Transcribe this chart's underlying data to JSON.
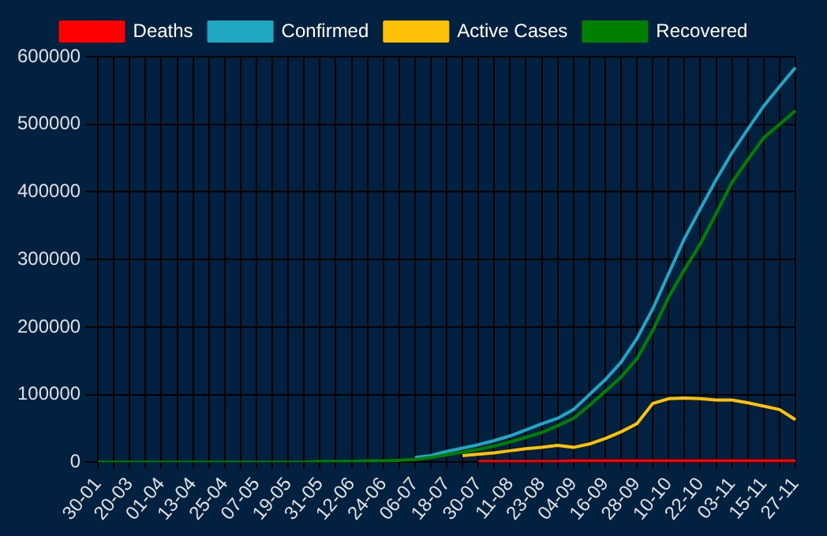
{
  "chart_data": {
    "type": "line",
    "categories": [
      "30-01",
      null,
      "20-03",
      null,
      "01-04",
      null,
      "13-04",
      null,
      "25-04",
      null,
      "07-05",
      null,
      "19-05",
      null,
      "31-05",
      null,
      "12-06",
      null,
      "24-06",
      null,
      "06-07",
      null,
      "18-07",
      null,
      "30-07",
      null,
      "11-08",
      null,
      "23-08",
      null,
      "04-09",
      null,
      "16-09",
      null,
      "28-09",
      null,
      "10-10",
      null,
      "22-10",
      null,
      "03-11",
      null,
      "15-11",
      null,
      "27-11"
    ],
    "series": [
      {
        "name": "Deaths",
        "color": "#ff0000",
        "values": [
          null,
          null,
          null,
          null,
          null,
          null,
          null,
          null,
          null,
          null,
          null,
          null,
          null,
          null,
          null,
          null,
          null,
          null,
          null,
          null,
          null,
          null,
          null,
          null,
          1000,
          1000,
          1000,
          1000,
          1000,
          1000,
          2000,
          2000,
          2000,
          2000,
          2000,
          2000,
          2000,
          2000,
          2000,
          2000,
          2000,
          2000,
          2000,
          2000,
          2000
        ]
      },
      {
        "name": "Confirmed",
        "color": "#1fa8c4",
        "values": [
          null,
          null,
          null,
          null,
          null,
          null,
          null,
          null,
          null,
          null,
          null,
          null,
          null,
          null,
          null,
          null,
          null,
          null,
          null,
          null,
          7000,
          10000,
          16000,
          21000,
          26000,
          32000,
          39000,
          48000,
          57000,
          65000,
          78000,
          100000,
          122000,
          148000,
          183000,
          227000,
          279000,
          331000,
          375000,
          418000,
          458000,
          493000,
          527000,
          556000,
          584000
        ]
      },
      {
        "name": "Active Cases",
        "color": "#ffc107",
        "values": [
          null,
          null,
          null,
          null,
          null,
          null,
          null,
          null,
          null,
          null,
          null,
          null,
          null,
          null,
          null,
          null,
          null,
          null,
          null,
          null,
          null,
          null,
          null,
          10000,
          12000,
          14000,
          17000,
          20000,
          22000,
          25000,
          22000,
          27000,
          35000,
          45000,
          57000,
          87000,
          94000,
          95000,
          94000,
          92000,
          92000,
          88000,
          83000,
          78000,
          63000
        ]
      },
      {
        "name": "Recovered",
        "color": "#008000",
        "values": [
          0,
          0,
          0,
          0,
          0,
          0,
          0,
          0,
          0,
          0,
          0,
          0,
          0,
          0,
          1000,
          1000,
          1000,
          2000,
          2000,
          3000,
          4000,
          7000,
          11000,
          15000,
          19000,
          24000,
          30000,
          37000,
          44000,
          54000,
          65000,
          84000,
          105000,
          126000,
          153000,
          195000,
          244000,
          285000,
          323000,
          368000,
          414000,
          448000,
          480000,
          500000,
          520000
        ]
      }
    ],
    "ylim": [
      0,
      600000
    ],
    "yticks": [
      0,
      100000,
      200000,
      300000,
      400000,
      500000,
      600000
    ],
    "grid": true,
    "legend": "top",
    "marker": "none",
    "line_style": "solid"
  }
}
